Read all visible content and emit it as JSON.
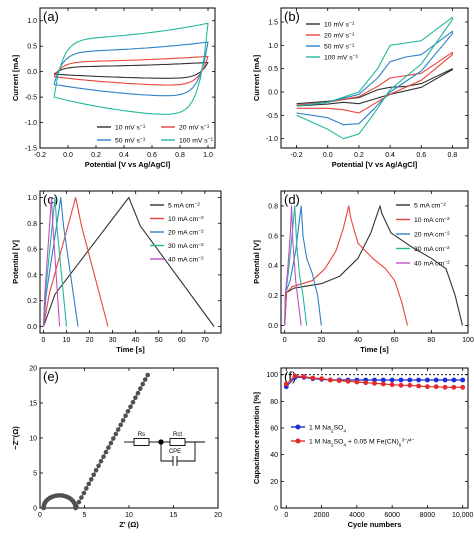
{
  "chart_data": [
    {
      "panel": "(a)",
      "type": "line",
      "xlabel": "Potential [V vs Ag/AgCl]",
      "ylabel": "Current [mA]",
      "xlim": [
        -0.2,
        1.05
      ],
      "ylim": [
        -1.5,
        1.25
      ],
      "xticks": [
        -0.2,
        0.0,
        0.2,
        0.4,
        0.6,
        0.8,
        1.0
      ],
      "yticks": [
        -1.5,
        -1.0,
        -0.5,
        0.0,
        0.5,
        1.0
      ],
      "xtick_labels": [
        "-0.2",
        "0.0",
        "0.2",
        "0.4",
        "0.6",
        "0.8",
        "1.0"
      ],
      "ytick_labels": [
        "-1.5",
        "-1.0",
        "-0.5",
        "0.0",
        "0.5",
        "1.0"
      ],
      "legend_position": "bottom-right",
      "legend_columns": 2,
      "series": [
        {
          "name": "10 mV s⁻¹",
          "color": "#333333",
          "loop": {
            "x0": -0.1,
            "x1": 1.0,
            "top_start": 0.1,
            "top_end": 0.18,
            "bot_start": -0.05,
            "bot_end": -0.14,
            "rise": 0.2
          }
        },
        {
          "name": "20 mV s⁻¹",
          "color": "#e8453c",
          "loop": {
            "x0": -0.1,
            "x1": 1.0,
            "top_start": 0.2,
            "top_end": 0.3,
            "bot_start": -0.1,
            "bot_end": -0.28,
            "rise": 0.35
          }
        },
        {
          "name": "50 mV s⁻¹",
          "color": "#2f80c8",
          "loop": {
            "x0": -0.1,
            "x1": 1.0,
            "top_start": 0.4,
            "top_end": 0.58,
            "bot_start": -0.25,
            "bot_end": -0.5,
            "rise": 0.55
          }
        },
        {
          "name": "100 mV s⁻¹",
          "color": "#23b89a",
          "loop": {
            "x0": -0.1,
            "x1": 1.0,
            "top_start": 0.65,
            "top_end": 0.95,
            "bot_start": -0.5,
            "bot_end": -0.88,
            "rise": 0.9
          }
        }
      ]
    },
    {
      "panel": "(b)",
      "type": "line",
      "xlabel": "Potential [V vs Ag/AgCl]",
      "ylabel": "Current [mA]",
      "xlim": [
        -0.3,
        0.9
      ],
      "ylim": [
        -1.2,
        1.8
      ],
      "xticks": [
        -0.2,
        0.0,
        0.2,
        0.4,
        0.6,
        0.8
      ],
      "yticks": [
        -1.0,
        -0.5,
        0.0,
        0.5,
        1.0,
        1.5
      ],
      "xtick_labels": [
        "-0.2",
        "0.0",
        "0.2",
        "0.4",
        "0.6",
        "0.8"
      ],
      "ytick_labels": [
        "-1.0",
        "-0.5",
        "0.0",
        "0.5",
        "1.0",
        "1.5"
      ],
      "legend_position": "top-left",
      "series": [
        {
          "name": "10 mV s⁻¹",
          "color": "#333333",
          "x": [
            -0.2,
            0.0,
            0.2,
            0.32,
            0.4,
            0.5,
            0.6,
            0.8,
            0.8,
            0.6,
            0.4,
            0.3,
            0.2,
            0.1,
            0.0,
            -0.2
          ],
          "y": [
            -0.25,
            -0.2,
            -0.12,
            0.05,
            0.1,
            0.12,
            0.18,
            0.5,
            0.48,
            0.1,
            -0.05,
            -0.15,
            -0.25,
            -0.22,
            -0.26,
            -0.3
          ]
        },
        {
          "name": "20 mV s⁻¹",
          "color": "#e8453c",
          "x": [
            -0.2,
            0.0,
            0.2,
            0.32,
            0.4,
            0.5,
            0.6,
            0.8,
            0.8,
            0.6,
            0.4,
            0.3,
            0.2,
            0.1,
            0.0,
            -0.2
          ],
          "y": [
            -0.28,
            -0.22,
            -0.1,
            0.12,
            0.3,
            0.35,
            0.4,
            0.85,
            0.8,
            0.25,
            -0.05,
            -0.25,
            -0.45,
            -0.38,
            -0.35,
            -0.35
          ]
        },
        {
          "name": "50 mV s⁻¹",
          "color": "#2f80c8",
          "x": [
            -0.2,
            0.0,
            0.2,
            0.32,
            0.4,
            0.5,
            0.6,
            0.8,
            0.8,
            0.6,
            0.4,
            0.3,
            0.2,
            0.1,
            0.0,
            -0.2
          ],
          "y": [
            -0.3,
            -0.22,
            -0.05,
            0.3,
            0.65,
            0.75,
            0.8,
            1.3,
            1.25,
            0.45,
            0.0,
            -0.35,
            -0.68,
            -0.7,
            -0.55,
            -0.45
          ]
        },
        {
          "name": "100 mV s⁻¹",
          "color": "#23b89a",
          "x": [
            -0.2,
            0.0,
            0.2,
            0.32,
            0.4,
            0.5,
            0.6,
            0.8,
            0.8,
            0.6,
            0.4,
            0.3,
            0.2,
            0.1,
            0.0,
            -0.2
          ],
          "y": [
            -0.3,
            -0.22,
            0.0,
            0.5,
            1.0,
            1.05,
            1.1,
            1.6,
            1.55,
            0.6,
            0.05,
            -0.45,
            -0.9,
            -1.0,
            -0.8,
            -0.5
          ]
        }
      ]
    },
    {
      "panel": "(c)",
      "type": "line",
      "xlabel": "Time [s]",
      "ylabel": "Potential [V]",
      "xlim": [
        -1.5,
        77
      ],
      "ylim": [
        -0.05,
        1.05
      ],
      "xticks": [
        0,
        10,
        20,
        30,
        40,
        50,
        60,
        70
      ],
      "yticks": [
        0.0,
        0.2,
        0.4,
        0.6,
        0.8,
        1.0
      ],
      "xtick_labels": [
        "0",
        "10",
        "20",
        "30",
        "40",
        "50",
        "60",
        "70"
      ],
      "ytick_labels": [
        "0.0",
        "0.2",
        "0.4",
        "0.6",
        "0.8",
        "1.0"
      ],
      "legend_position": "top-right",
      "series": [
        {
          "name": "5 mA cm⁻²",
          "color": "#333333",
          "x": [
            0,
            5,
            37,
            42,
            74
          ],
          "y": [
            0,
            0.25,
            1.0,
            0.78,
            0
          ]
        },
        {
          "name": "10 mA cm⁻²",
          "color": "#e8453c",
          "x": [
            0,
            2.5,
            14,
            16.5,
            28
          ],
          "y": [
            0,
            0.25,
            1.0,
            0.78,
            0
          ]
        },
        {
          "name": "20 mA cm⁻²",
          "color": "#2f80c8",
          "x": [
            0,
            1.2,
            7.5,
            8.7,
            15
          ],
          "y": [
            0,
            0.25,
            1.0,
            0.78,
            0
          ]
        },
        {
          "name": "30 mA cm⁻²",
          "color": "#23b89a",
          "x": [
            0,
            0.8,
            5,
            5.8,
            10
          ],
          "y": [
            0,
            0.25,
            1.0,
            0.78,
            0
          ]
        },
        {
          "name": "40 mA cm⁻²",
          "color": "#c04fc4",
          "x": [
            0,
            0.6,
            3.5,
            4.1,
            7
          ],
          "y": [
            0,
            0.25,
            1.0,
            0.78,
            0
          ]
        }
      ]
    },
    {
      "panel": "(d)",
      "type": "line",
      "xlabel": "Time [s]",
      "ylabel": "Potential [V]",
      "xlim": [
        -2,
        100
      ],
      "ylim": [
        -0.05,
        0.9
      ],
      "xticks": [
        0,
        20,
        40,
        60,
        80,
        100
      ],
      "yticks": [
        0.0,
        0.2,
        0.4,
        0.6,
        0.8
      ],
      "xtick_labels": [
        "0",
        "20",
        "40",
        "60",
        "80",
        "100"
      ],
      "ytick_labels": [
        "0.0",
        "0.2",
        "0.4",
        "0.6",
        "0.8"
      ],
      "legend_position": "right",
      "series": [
        {
          "name": "5 mA cm⁻²",
          "color": "#333333",
          "x": [
            0,
            1,
            5,
            20,
            30,
            40,
            47,
            52,
            53,
            58,
            70,
            80,
            88,
            93,
            97
          ],
          "y": [
            0,
            0.22,
            0.25,
            0.28,
            0.33,
            0.45,
            0.62,
            0.8,
            0.75,
            0.62,
            0.52,
            0.45,
            0.38,
            0.2,
            0
          ]
        },
        {
          "name": "10 mA cm⁻²",
          "color": "#e8453c",
          "x": [
            0,
            1,
            4,
            15,
            22,
            28,
            32,
            35,
            36,
            40,
            48,
            55,
            60,
            64,
            67
          ],
          "y": [
            0,
            0.22,
            0.26,
            0.3,
            0.38,
            0.5,
            0.65,
            0.8,
            0.72,
            0.55,
            0.45,
            0.38,
            0.3,
            0.15,
            0
          ]
        },
        {
          "name": "20 mA cm⁻²",
          "color": "#2f80c8",
          "x": [
            0,
            0.5,
            3,
            6,
            8,
            9,
            10,
            12,
            15,
            18,
            20
          ],
          "y": [
            0,
            0.22,
            0.3,
            0.5,
            0.7,
            0.8,
            0.6,
            0.45,
            0.35,
            0.2,
            0
          ]
        },
        {
          "name": "30 mA cm⁻²",
          "color": "#23b89a",
          "x": [
            0,
            0.4,
            2,
            4,
            5.5,
            6.5,
            8,
            10,
            12
          ],
          "y": [
            0,
            0.2,
            0.35,
            0.6,
            0.8,
            0.55,
            0.35,
            0.2,
            0
          ]
        },
        {
          "name": "40 mA cm⁻²",
          "color": "#c04fc4",
          "x": [
            0,
            0.3,
            1.5,
            3,
            3.8,
            4.5,
            6,
            7.5,
            9
          ],
          "y": [
            0,
            0.2,
            0.35,
            0.6,
            0.8,
            0.55,
            0.3,
            0.15,
            0
          ]
        }
      ]
    },
    {
      "panel": "(e)",
      "type": "scatter",
      "xlabel": "Z' (Ω)",
      "ylabel": "−Z''(Ω)",
      "xlim": [
        0,
        20
      ],
      "ylim": [
        0,
        20
      ],
      "xticks": [
        0,
        5,
        10,
        15,
        20
      ],
      "yticks": [
        0,
        5,
        10,
        15,
        20
      ],
      "xtick_labels": [
        "0",
        "5",
        "10",
        "15",
        "20"
      ],
      "ytick_labels": [
        "0",
        "5",
        "10",
        "15",
        "20"
      ],
      "marker_color": "#505050",
      "semicircle": {
        "center": 2.2,
        "radius": 1.8,
        "points": 22
      },
      "tail": {
        "x_start": 4.1,
        "y_start": 0.2,
        "x_end": 12.1,
        "y_end": 19.0,
        "points": 30
      },
      "circuit": {
        "labels": [
          "Rs",
          "Rct",
          "CPE"
        ]
      }
    },
    {
      "panel": "(f)",
      "type": "line",
      "xlabel": "Cycle numbers",
      "ylabel": "Capacitance retention [%]",
      "xlim": [
        -300,
        10300
      ],
      "ylim": [
        0,
        105
      ],
      "xticks": [
        0,
        2000,
        4000,
        6000,
        8000,
        10000
      ],
      "yticks": [
        0,
        20,
        40,
        60,
        80,
        100
      ],
      "xtick_labels": [
        "0",
        "2000",
        "4000",
        "6000",
        "8000",
        "10,000"
      ],
      "ytick_labels": [
        "0",
        "20",
        "40",
        "60",
        "80",
        "100"
      ],
      "reference_line": 100,
      "legend_position": "center-left",
      "series": [
        {
          "name": "1 M Na₂SO₄",
          "color": "#1a2fd6",
          "x": [
            0,
            500,
            1000,
            1500,
            2000,
            2500,
            3000,
            3500,
            4000,
            4500,
            5000,
            5500,
            6000,
            6500,
            7000,
            7500,
            8000,
            8500,
            9000,
            9500,
            10000
          ],
          "y": [
            91,
            98,
            98,
            97,
            96.5,
            96,
            96,
            96,
            96,
            96,
            96,
            96,
            96,
            96,
            96,
            96,
            96,
            96,
            96,
            96,
            96
          ]
        },
        {
          "name": "1 M Na₂SO₄ + 0.05 M Fe(CN)₆³⁻/⁴⁻",
          "color": "#e32b2b",
          "x": [
            0,
            500,
            1000,
            1500,
            2000,
            2500,
            3000,
            3500,
            4000,
            4500,
            5000,
            5500,
            6000,
            6500,
            7000,
            7500,
            8000,
            8500,
            9000,
            9500,
            10000
          ],
          "y": [
            93,
            99,
            98.5,
            97.5,
            97,
            96,
            95.5,
            95,
            94.5,
            94,
            93.5,
            93,
            92.5,
            92,
            92,
            91.5,
            91,
            91,
            90.5,
            90.5,
            90.5
          ]
        }
      ]
    }
  ]
}
